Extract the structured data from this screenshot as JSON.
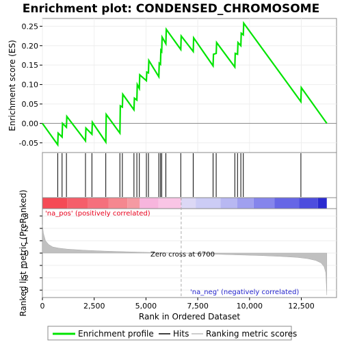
{
  "chart_data": {
    "type": "line",
    "title": "Enrichment plot: CONDENSED_CHROMOSOME",
    "es_panel": {
      "ylabel": "Enrichment score (ES)",
      "ylim": [
        -0.075,
        0.27
      ],
      "yticks": [
        -0.05,
        0.0,
        0.05,
        0.1,
        0.15,
        0.2,
        0.25
      ],
      "ytick_labels": [
        "-0.05",
        "0.00",
        "0.05",
        "0.10",
        "0.15",
        "0.20",
        "0.25"
      ],
      "color": "#00e400"
    },
    "series": [
      {
        "name": "Enrichment profile",
        "x": [
          0,
          740,
          760,
          950,
          970,
          1160,
          1180,
          2080,
          2100,
          2390,
          2410,
          3060,
          3080,
          3740,
          3760,
          3860,
          3880,
          4420,
          4440,
          4560,
          4580,
          4680,
          4700,
          5020,
          5040,
          5120,
          5140,
          5620,
          5640,
          5700,
          5720,
          5760,
          5780,
          5960,
          5980,
          6680,
          6700,
          7280,
          7300,
          8240,
          8260,
          8390,
          8410,
          9290,
          9310,
          9420,
          9440,
          9580,
          9600,
          9700,
          9720,
          12480,
          12500,
          13730
        ],
        "y": [
          0.0,
          -0.055,
          -0.025,
          -0.035,
          0.0,
          -0.01,
          0.018,
          -0.045,
          -0.012,
          -0.028,
          0.003,
          -0.048,
          0.023,
          -0.025,
          0.045,
          0.042,
          0.075,
          0.035,
          0.065,
          0.06,
          0.1,
          0.09,
          0.125,
          0.11,
          0.132,
          0.13,
          0.162,
          0.12,
          0.155,
          0.152,
          0.188,
          0.185,
          0.222,
          0.205,
          0.242,
          0.19,
          0.225,
          0.185,
          0.22,
          0.148,
          0.178,
          0.18,
          0.208,
          0.145,
          0.18,
          0.178,
          0.208,
          0.2,
          0.232,
          0.228,
          0.258,
          0.056,
          0.092,
          0.0
        ]
      }
    ],
    "hits": [
      740,
      950,
      1160,
      2080,
      2390,
      3060,
      3740,
      3860,
      4420,
      4560,
      4680,
      5020,
      5120,
      5620,
      5700,
      5760,
      5960,
      6680,
      7280,
      8240,
      8390,
      9290,
      9420,
      9580,
      9700,
      12480
    ],
    "ranked_panel": {
      "ylabel": "Ranked list metric (PreRanked)",
      "ylim": [
        -3.6,
        3.6
      ],
      "yticks": [
        -3,
        -2,
        -1,
        0,
        1,
        2,
        3
      ],
      "ytick_labels": [
        "-3",
        "-2",
        "-1",
        "0",
        "1",
        "2",
        "3"
      ],
      "metric_x": [
        0,
        50,
        150,
        300,
        500,
        800,
        1200,
        2000,
        3000,
        4000,
        5000,
        6000,
        6700,
        7500,
        8500,
        9500,
        10500,
        11500,
        12300,
        12800,
        13200,
        13450,
        13600,
        13680,
        13730
      ],
      "metric_y": [
        2.3,
        1.6,
        1.0,
        0.7,
        0.5,
        0.4,
        0.32,
        0.23,
        0.16,
        0.11,
        0.06,
        0.02,
        0.0,
        -0.05,
        -0.1,
        -0.15,
        -0.2,
        -0.27,
        -0.35,
        -0.45,
        -0.6,
        -0.8,
        -1.1,
        -1.6,
        -3.4
      ],
      "zero_cross_x": 6700,
      "zero_cross_label": "Zero cross at 6700",
      "pos_label": "'na_pos' (positively correlated)",
      "neg_label": "'na_neg' (negatively correlated)",
      "pos_color": "#e8001c",
      "neg_color": "#2222cc"
    },
    "xlabel": "Rank in Ordered Dataset",
    "xlim": [
      0,
      14200
    ],
    "xticks": [
      0,
      2500,
      5000,
      7500,
      10000,
      12500
    ],
    "xtick_labels": [
      "0",
      "2,500",
      "5,000",
      "7,500",
      "10,000",
      "12,500"
    ],
    "color_bar": {
      "segments": [
        {
          "x0": 0,
          "x1": 1200,
          "color": "#f54a55"
        },
        {
          "x0": 1200,
          "x1": 2200,
          "color": "#f55e6a"
        },
        {
          "x0": 2200,
          "x1": 3200,
          "color": "#f5707c"
        },
        {
          "x0": 3200,
          "x1": 4100,
          "color": "#f5878f"
        },
        {
          "x0": 4100,
          "x1": 4700,
          "color": "#f59aa2"
        },
        {
          "x0": 4700,
          "x1": 5600,
          "color": "#f7b5dd"
        },
        {
          "x0": 5600,
          "x1": 6700,
          "color": "#f9c5e5"
        },
        {
          "x0": 6700,
          "x1": 7400,
          "color": "#dcd8f5"
        },
        {
          "x0": 7400,
          "x1": 8600,
          "color": "#ccccf5"
        },
        {
          "x0": 8600,
          "x1": 9400,
          "color": "#b8b8f2"
        },
        {
          "x0": 9400,
          "x1": 10200,
          "color": "#a0a0ef"
        },
        {
          "x0": 10200,
          "x1": 11200,
          "color": "#8585ec"
        },
        {
          "x0": 11200,
          "x1": 12400,
          "color": "#6666e6"
        },
        {
          "x0": 12400,
          "x1": 13300,
          "color": "#4d4dde"
        },
        {
          "x0": 13300,
          "x1": 13730,
          "color": "#2a2ad0"
        }
      ]
    },
    "legend": {
      "placement": "bottom",
      "items": [
        {
          "label": "Enrichment profile",
          "color": "#00e400"
        },
        {
          "label": "Hits",
          "color": "#000000"
        },
        {
          "label": "Ranking metric scores",
          "color": "#bbbbbb"
        }
      ]
    }
  }
}
